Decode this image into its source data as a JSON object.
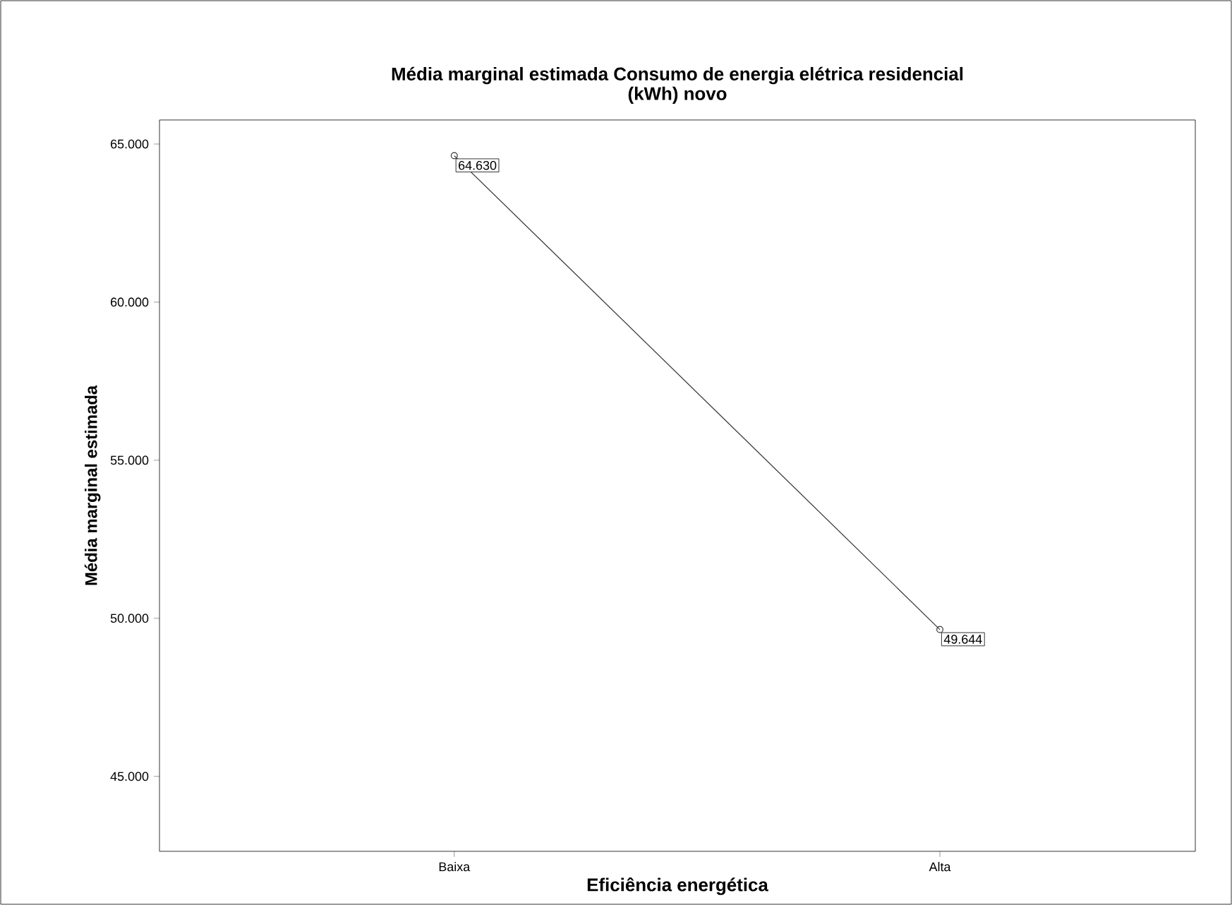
{
  "chart_data": {
    "type": "line",
    "title": "Média marginal estimada Consumo de energia elétrica residencial\n(kWh) novo",
    "xlabel": "Eficiência energética",
    "ylabel": "Média marginal estimada",
    "categories": [
      "Baixa",
      "Alta"
    ],
    "series": [
      {
        "color": "#333333",
        "values": [
          64630,
          49644
        ],
        "value_labels": [
          "64.630",
          "49.644"
        ]
      }
    ],
    "ylim": [
      42630,
      65760
    ],
    "yticks": [
      {
        "value": 45000,
        "label": "45.000"
      },
      {
        "value": 50000,
        "label": "50.000"
      },
      {
        "value": 55000,
        "label": "55.000"
      },
      {
        "value": 60000,
        "label": "60.000"
      },
      {
        "value": 65000,
        "label": "65.000"
      }
    ],
    "marker": "circle",
    "line_style": "solid"
  }
}
